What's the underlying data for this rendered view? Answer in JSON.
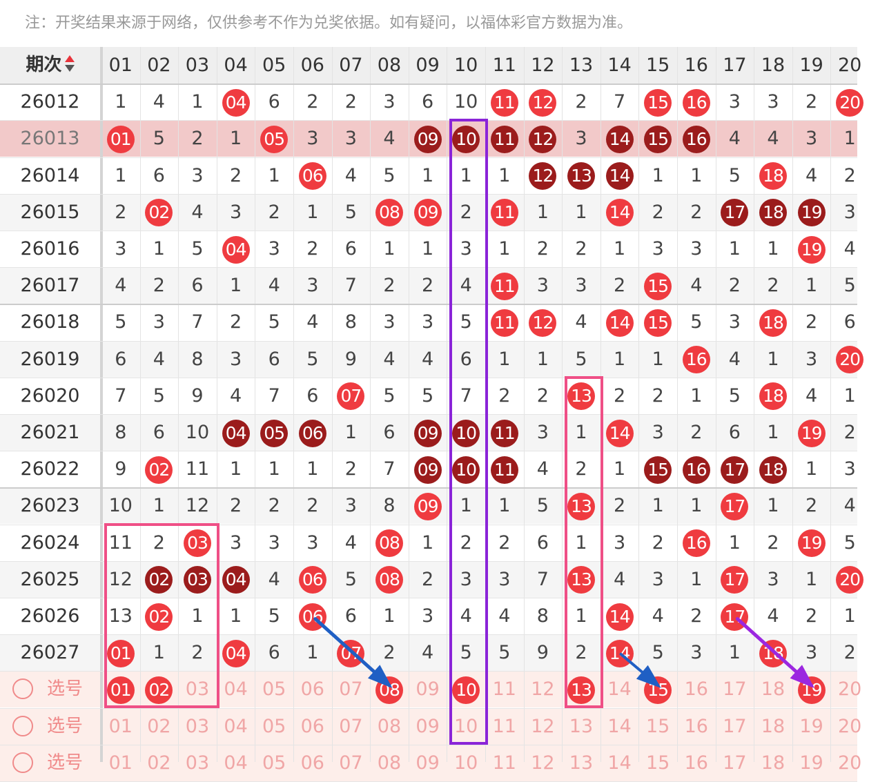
{
  "notice": "注：开奖结果来源于网络，仅供参考不作为兑奖依据。如有疑问，以福体彩官方数据为准。",
  "header": {
    "period_label": "期次",
    "numbers": [
      "01",
      "02",
      "03",
      "04",
      "05",
      "06",
      "07",
      "08",
      "09",
      "10",
      "11",
      "12",
      "13",
      "14",
      "15",
      "16",
      "17",
      "18",
      "19",
      "20"
    ]
  },
  "colors": {
    "ball_red": "#ef3b40",
    "ball_dark": "#9b1c1c",
    "frame_pink": "#ef4f86",
    "frame_purple": "#8a24d8",
    "arrow_blue": "#1f5fc4",
    "arrow_purple": "#9b27e0"
  },
  "rows": [
    {
      "period": "26012",
      "cells": [
        "1",
        "4",
        "1",
        "r:04",
        "6",
        "2",
        "2",
        "3",
        "6",
        "10",
        "r:11",
        "r:12",
        "2",
        "7",
        "r:15",
        "r:16",
        "3",
        "3",
        "2",
        "r:20"
      ]
    },
    {
      "period": "26013",
      "cells": [
        "r:01",
        "5",
        "2",
        "1",
        "r:05",
        "3",
        "3",
        "4",
        "d:09",
        "d:10",
        "d:11",
        "d:12",
        "3",
        "d:14",
        "d:15",
        "d:16",
        "4",
        "4",
        "3",
        "1"
      ]
    },
    {
      "period": "26014",
      "cells": [
        "1",
        "6",
        "3",
        "2",
        "1",
        "r:06",
        "4",
        "5",
        "1",
        "1",
        "1",
        "d:12",
        "d:13",
        "d:14",
        "1",
        "1",
        "5",
        "r:18",
        "4",
        "2"
      ]
    },
    {
      "period": "26015",
      "cells": [
        "2",
        "r:02",
        "4",
        "3",
        "2",
        "1",
        "5",
        "r:08",
        "r:09",
        "2",
        "r:11",
        "1",
        "1",
        "r:14",
        "2",
        "2",
        "d:17",
        "d:18",
        "d:19",
        "3"
      ]
    },
    {
      "period": "26016",
      "cells": [
        "3",
        "1",
        "5",
        "r:04",
        "3",
        "2",
        "6",
        "1",
        "1",
        "3",
        "1",
        "2",
        "2",
        "1",
        "3",
        "3",
        "1",
        "1",
        "r:19",
        "4"
      ]
    },
    {
      "period": "26017",
      "cells": [
        "4",
        "2",
        "6",
        "1",
        "4",
        "3",
        "7",
        "2",
        "2",
        "4",
        "r:11",
        "3",
        "3",
        "2",
        "r:15",
        "4",
        "2",
        "2",
        "1",
        "5"
      ]
    },
    {
      "period": "26018",
      "cells": [
        "5",
        "3",
        "7",
        "2",
        "5",
        "4",
        "8",
        "3",
        "3",
        "5",
        "r:11",
        "r:12",
        "4",
        "r:14",
        "r:15",
        "5",
        "3",
        "r:18",
        "2",
        "6"
      ]
    },
    {
      "period": "26019",
      "cells": [
        "6",
        "4",
        "8",
        "3",
        "6",
        "5",
        "9",
        "4",
        "4",
        "6",
        "1",
        "1",
        "5",
        "1",
        "1",
        "r:16",
        "4",
        "1",
        "3",
        "r:20"
      ]
    },
    {
      "period": "26020",
      "cells": [
        "7",
        "5",
        "9",
        "4",
        "7",
        "6",
        "r:07",
        "5",
        "5",
        "7",
        "2",
        "2",
        "r:13",
        "2",
        "2",
        "1",
        "5",
        "r:18",
        "4",
        "1"
      ]
    },
    {
      "period": "26021",
      "cells": [
        "8",
        "6",
        "10",
        "d:04",
        "d:05",
        "d:06",
        "1",
        "6",
        "d:09",
        "d:10",
        "d:11",
        "3",
        "1",
        "r:14",
        "3",
        "2",
        "6",
        "1",
        "r:19",
        "2"
      ]
    },
    {
      "period": "26022",
      "cells": [
        "9",
        "r:02",
        "11",
        "1",
        "1",
        "1",
        "2",
        "7",
        "d:09",
        "d:10",
        "d:11",
        "4",
        "2",
        "1",
        "d:15",
        "d:16",
        "d:17",
        "d:18",
        "1",
        "3"
      ]
    },
    {
      "period": "26023",
      "cells": [
        "10",
        "1",
        "12",
        "2",
        "2",
        "2",
        "3",
        "8",
        "r:09",
        "1",
        "1",
        "5",
        "r:13",
        "2",
        "1",
        "1",
        "r:17",
        "1",
        "2",
        "4"
      ]
    },
    {
      "period": "26024",
      "cells": [
        "11",
        "2",
        "r:03",
        "3",
        "3",
        "3",
        "4",
        "r:08",
        "1",
        "2",
        "2",
        "6",
        "1",
        "3",
        "2",
        "r:16",
        "1",
        "2",
        "r:19",
        "5"
      ]
    },
    {
      "period": "26025",
      "cells": [
        "12",
        "d:02",
        "d:03",
        "d:04",
        "4",
        "r:06",
        "5",
        "r:08",
        "2",
        "3",
        "3",
        "7",
        "r:13",
        "4",
        "3",
        "1",
        "r:17",
        "3",
        "1",
        "r:20"
      ]
    },
    {
      "period": "26026",
      "cells": [
        "13",
        "r:02",
        "1",
        "1",
        "5",
        "r:06",
        "6",
        "1",
        "3",
        "4",
        "4",
        "8",
        "1",
        "r:14",
        "4",
        "2",
        "r:17",
        "4",
        "2",
        "1"
      ]
    },
    {
      "period": "26027",
      "cells": [
        "r:01",
        "1",
        "2",
        "r:04",
        "6",
        "1",
        "r:07",
        "2",
        "4",
        "5",
        "5",
        "9",
        "2",
        "r:14",
        "5",
        "3",
        "1",
        "r:18",
        "3",
        "2"
      ]
    }
  ],
  "select_rows": [
    {
      "label": "选号",
      "cells": [
        "r:01",
        "r:02",
        "03",
        "04",
        "05",
        "06",
        "07",
        "r:08",
        "09",
        "r:10",
        "11",
        "12",
        "r:13",
        "14",
        "r:15",
        "16",
        "17",
        "18",
        "r:19",
        "20"
      ]
    },
    {
      "label": "选号",
      "cells": [
        "01",
        "02",
        "03",
        "04",
        "05",
        "06",
        "07",
        "08",
        "09",
        "10",
        "11",
        "12",
        "13",
        "14",
        "15",
        "16",
        "17",
        "18",
        "19",
        "20"
      ]
    },
    {
      "label": "选号",
      "cells": [
        "01",
        "02",
        "03",
        "04",
        "05",
        "06",
        "07",
        "08",
        "09",
        "10",
        "11",
        "12",
        "13",
        "14",
        "15",
        "16",
        "17",
        "18",
        "19",
        "20"
      ]
    }
  ]
}
